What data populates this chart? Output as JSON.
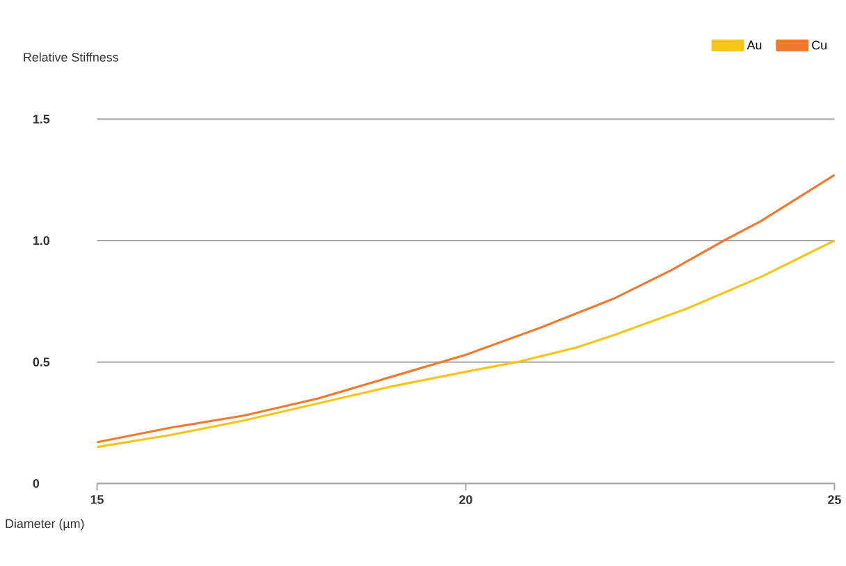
{
  "chart_data": {
    "type": "line",
    "xlabel": "Diameter (µm)",
    "ylabel": "Relative Stiffness",
    "xlim": [
      15,
      25
    ],
    "xticks": [
      15,
      20,
      25
    ],
    "ylim": [
      0,
      1.5
    ],
    "yticks": [
      {
        "value": 0,
        "label": "0"
      },
      {
        "value": 0.5,
        "label": "0.5"
      },
      {
        "value": 1.0,
        "label": "1.0"
      },
      {
        "value": 1.5,
        "label": "1.5"
      }
    ],
    "grid": "y",
    "legend": "top right",
    "marker": "none",
    "line_style": "solid",
    "series": [
      {
        "name": "Au",
        "color": "#f5c518",
        "x": [
          15,
          16,
          17,
          18,
          19,
          20,
          20.7,
          21.5,
          22,
          23,
          24,
          25
        ],
        "values": [
          0.15,
          0.2,
          0.26,
          0.33,
          0.4,
          0.46,
          0.5,
          0.56,
          0.61,
          0.72,
          0.85,
          1.0
        ]
      },
      {
        "name": "Cu",
        "color": "#ee7a30",
        "x": [
          15,
          16,
          17,
          18,
          19,
          20,
          21,
          22,
          22.8,
          23.5,
          24,
          25
        ],
        "values": [
          0.17,
          0.23,
          0.28,
          0.35,
          0.44,
          0.53,
          0.64,
          0.76,
          0.88,
          1.0,
          1.08,
          1.27
        ]
      }
    ]
  }
}
